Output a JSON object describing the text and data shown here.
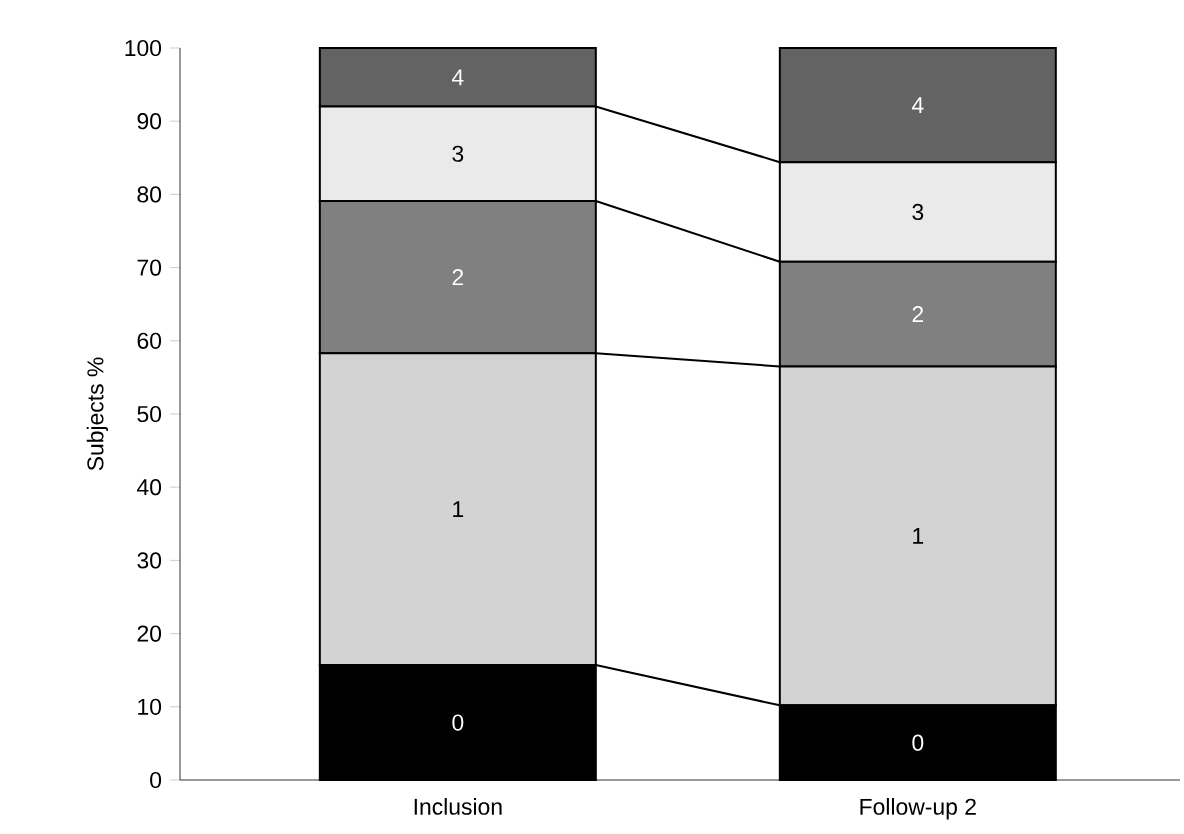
{
  "chart_data": {
    "type": "bar",
    "stacked": true,
    "ylabel": "Subjects %",
    "categories": [
      "Inclusion",
      "Follow-up 2"
    ],
    "series": [
      {
        "name": "0",
        "color": "#000000",
        "values": [
          15.7,
          10.2
        ]
      },
      {
        "name": "1",
        "color": "#d3d3d3",
        "values": [
          42.6,
          46.3
        ]
      },
      {
        "name": "2",
        "color": "#808080",
        "values": [
          20.8,
          14.3
        ]
      },
      {
        "name": "3",
        "color": "#eaeaea",
        "values": [
          12.9,
          13.6
        ]
      },
      {
        "name": "4",
        "color": "#636363",
        "values": [
          8.0,
          15.6
        ]
      }
    ],
    "ylim": [
      0,
      100
    ],
    "yticks": [
      0,
      10,
      20,
      30,
      40,
      50,
      60,
      70,
      80,
      90,
      100
    ],
    "grid": false
  }
}
